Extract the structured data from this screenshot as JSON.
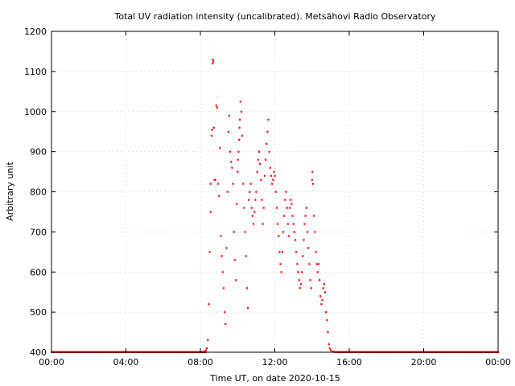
{
  "chart_data": {
    "type": "scatter",
    "title": "Total UV radiation intensity (uncalibrated). Metsähovi Radio Observatory",
    "xlabel": "Time UT, on date 2020-10-15",
    "ylabel": "Arbitrary unit",
    "x_unit": "hours UT",
    "xlim": [
      0,
      24
    ],
    "ylim": [
      400,
      1200
    ],
    "x_ticks": [
      0,
      4,
      8,
      12,
      16,
      20,
      24
    ],
    "x_tick_labels": [
      "00:00",
      "04:00",
      "08:00",
      "12:00",
      "16:00",
      "20:00",
      "00:00"
    ],
    "y_ticks": [
      400,
      500,
      600,
      700,
      800,
      900,
      1000,
      1100,
      1200
    ],
    "y_tick_labels": [
      "400",
      "500",
      "600",
      "700",
      "800",
      "900",
      "1000",
      "1100",
      "1200"
    ],
    "grid": true,
    "marker_color": "#ff0000",
    "series": [
      {
        "points": [
          [
            0.0,
            400
          ],
          [
            0.5,
            400
          ],
          [
            1.0,
            400
          ],
          [
            1.5,
            400
          ],
          [
            2.0,
            400
          ],
          [
            2.5,
            400
          ],
          [
            3.0,
            400
          ],
          [
            3.5,
            400
          ],
          [
            4.0,
            400
          ],
          [
            4.5,
            400
          ],
          [
            5.0,
            400
          ],
          [
            5.5,
            400
          ],
          [
            6.0,
            400
          ],
          [
            6.5,
            400
          ],
          [
            7.0,
            400
          ],
          [
            7.5,
            400
          ],
          [
            8.0,
            400
          ],
          [
            8.2,
            402
          ],
          [
            8.3,
            405
          ],
          [
            8.35,
            410
          ],
          [
            8.4,
            430
          ],
          [
            8.45,
            520
          ],
          [
            8.5,
            650
          ],
          [
            8.55,
            750
          ],
          [
            8.55,
            820
          ],
          [
            8.6,
            940
          ],
          [
            8.62,
            955
          ],
          [
            8.65,
            1120
          ],
          [
            8.67,
            1130
          ],
          [
            8.7,
            1125
          ],
          [
            8.72,
            960
          ],
          [
            8.75,
            830
          ],
          [
            8.8,
            830
          ],
          [
            8.85,
            1015
          ],
          [
            8.9,
            1010
          ],
          [
            8.95,
            820
          ],
          [
            9.0,
            790
          ],
          [
            9.05,
            910
          ],
          [
            9.1,
            690
          ],
          [
            9.15,
            640
          ],
          [
            9.2,
            600
          ],
          [
            9.25,
            560
          ],
          [
            9.3,
            500
          ],
          [
            9.35,
            470
          ],
          [
            9.4,
            660
          ],
          [
            9.45,
            800
          ],
          [
            9.5,
            950
          ],
          [
            9.55,
            990
          ],
          [
            9.6,
            900
          ],
          [
            9.65,
            875
          ],
          [
            9.7,
            860
          ],
          [
            9.75,
            820
          ],
          [
            9.8,
            700
          ],
          [
            9.85,
            630
          ],
          [
            9.9,
            580
          ],
          [
            9.95,
            770
          ],
          [
            10.0,
            850
          ],
          [
            10.02,
            880
          ],
          [
            10.05,
            900
          ],
          [
            10.08,
            930
          ],
          [
            10.1,
            960
          ],
          [
            10.12,
            980
          ],
          [
            10.15,
            1025
          ],
          [
            10.2,
            1000
          ],
          [
            10.25,
            940
          ],
          [
            10.3,
            820
          ],
          [
            10.35,
            760
          ],
          [
            10.4,
            700
          ],
          [
            10.45,
            640
          ],
          [
            10.5,
            560
          ],
          [
            10.55,
            510
          ],
          [
            10.6,
            780
          ],
          [
            10.65,
            800
          ],
          [
            10.7,
            820
          ],
          [
            10.75,
            760
          ],
          [
            10.8,
            740
          ],
          [
            10.85,
            720
          ],
          [
            10.9,
            750
          ],
          [
            10.95,
            780
          ],
          [
            11.0,
            800
          ],
          [
            11.05,
            850
          ],
          [
            11.1,
            880
          ],
          [
            11.15,
            900
          ],
          [
            11.2,
            870
          ],
          [
            11.25,
            830
          ],
          [
            11.3,
            780
          ],
          [
            11.35,
            720
          ],
          [
            11.4,
            760
          ],
          [
            11.45,
            840
          ],
          [
            11.5,
            880
          ],
          [
            11.55,
            920
          ],
          [
            11.6,
            950
          ],
          [
            11.65,
            980
          ],
          [
            11.7,
            900
          ],
          [
            11.75,
            860
          ],
          [
            11.8,
            840
          ],
          [
            11.85,
            820
          ],
          [
            11.9,
            830
          ],
          [
            11.95,
            850
          ],
          [
            12.0,
            840
          ],
          [
            12.05,
            800
          ],
          [
            12.1,
            760
          ],
          [
            12.15,
            720
          ],
          [
            12.2,
            690
          ],
          [
            12.25,
            650
          ],
          [
            12.3,
            620
          ],
          [
            12.35,
            600
          ],
          [
            12.4,
            650
          ],
          [
            12.45,
            700
          ],
          [
            12.5,
            740
          ],
          [
            12.55,
            780
          ],
          [
            12.6,
            800
          ],
          [
            12.65,
            760
          ],
          [
            12.7,
            720
          ],
          [
            12.75,
            690
          ],
          [
            12.8,
            760
          ],
          [
            12.85,
            780
          ],
          [
            12.9,
            770
          ],
          [
            12.95,
            740
          ],
          [
            13.0,
            720
          ],
          [
            13.05,
            700
          ],
          [
            13.1,
            680
          ],
          [
            13.15,
            650
          ],
          [
            13.2,
            620
          ],
          [
            13.25,
            600
          ],
          [
            13.3,
            580
          ],
          [
            13.35,
            560
          ],
          [
            13.4,
            570
          ],
          [
            13.45,
            600
          ],
          [
            13.5,
            640
          ],
          [
            13.55,
            680
          ],
          [
            13.6,
            720
          ],
          [
            13.65,
            740
          ],
          [
            13.7,
            760
          ],
          [
            13.75,
            700
          ],
          [
            13.8,
            660
          ],
          [
            13.85,
            620
          ],
          [
            13.9,
            580
          ],
          [
            13.95,
            560
          ],
          [
            14.0,
            830
          ],
          [
            14.02,
            850
          ],
          [
            14.05,
            820
          ],
          [
            14.1,
            740
          ],
          [
            14.15,
            700
          ],
          [
            14.2,
            650
          ],
          [
            14.25,
            620
          ],
          [
            14.3,
            600
          ],
          [
            14.35,
            620
          ],
          [
            14.4,
            580
          ],
          [
            14.45,
            540
          ],
          [
            14.5,
            520
          ],
          [
            14.55,
            530
          ],
          [
            14.6,
            560
          ],
          [
            14.65,
            570
          ],
          [
            14.7,
            550
          ],
          [
            14.75,
            500
          ],
          [
            14.8,
            480
          ],
          [
            14.85,
            450
          ],
          [
            14.9,
            420
          ],
          [
            14.95,
            410
          ],
          [
            15.0,
            405
          ],
          [
            15.1,
            402
          ],
          [
            15.2,
            401
          ],
          [
            15.5,
            400
          ],
          [
            16.0,
            400
          ],
          [
            16.5,
            400
          ],
          [
            17.0,
            400
          ],
          [
            17.5,
            400
          ],
          [
            18.0,
            400
          ],
          [
            18.5,
            400
          ],
          [
            19.0,
            400
          ],
          [
            19.5,
            400
          ],
          [
            20.0,
            400
          ],
          [
            20.5,
            400
          ],
          [
            21.0,
            400
          ],
          [
            21.5,
            400
          ],
          [
            22.0,
            400
          ],
          [
            22.5,
            400
          ],
          [
            23.0,
            400
          ],
          [
            23.5,
            400
          ],
          [
            24.0,
            400
          ]
        ]
      }
    ]
  }
}
